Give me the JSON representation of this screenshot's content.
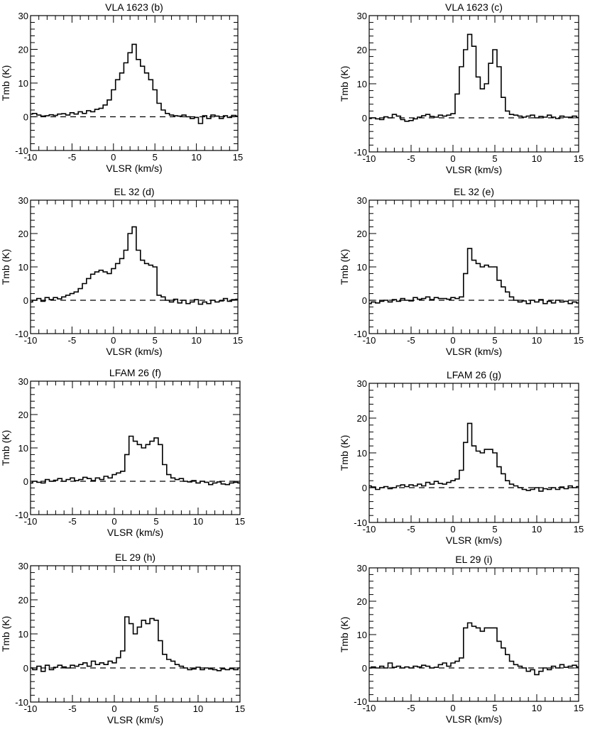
{
  "chart_data": [
    {
      "type": "line",
      "title": "VLA 1623 (b)",
      "xlabel": "VLSR (km/s)",
      "ylabel": "Tmb (K)",
      "xlim": [
        -10,
        15
      ],
      "ylim": [
        -10,
        30
      ],
      "xticks": [
        "-10",
        "-5",
        "0",
        "5",
        "10",
        "15"
      ],
      "yticks": [
        "-10",
        "0",
        "10",
        "20",
        "30"
      ],
      "baseline": 0,
      "series": [
        {
          "x": [
            -10,
            -9.5,
            -9,
            -8.5,
            -8,
            -7.5,
            -7,
            -6.5,
            -6,
            -5.5,
            -5,
            -4.5,
            -4,
            -3.5,
            -3,
            -2.5,
            -2,
            -1.5,
            -1,
            -0.5,
            0,
            0.5,
            1,
            1.5,
            2,
            2.5,
            3,
            3.5,
            4,
            4.5,
            5,
            5.5,
            6,
            6.5,
            7,
            7.5,
            8,
            8.5,
            9,
            9.5,
            10,
            10.5,
            11,
            11.5,
            12,
            12.5,
            13,
            13.5,
            14,
            14.5,
            15
          ],
          "y": [
            0.8,
            1.0,
            0.5,
            0.2,
            0.3,
            0.6,
            0.4,
            0.8,
            0.9,
            0.5,
            1.2,
            0.8,
            1.5,
            1.0,
            1.8,
            1.5,
            2.2,
            2.5,
            3.5,
            5.0,
            8.0,
            11.0,
            13.0,
            16.0,
            19.0,
            21.5,
            17.0,
            15.0,
            13.0,
            11.0,
            8.0,
            4.0,
            2.0,
            1.0,
            0.5,
            0.3,
            0.2,
            0.5,
            0.0,
            -0.5,
            -0.2,
            -2.0,
            0.3,
            -0.5,
            0.5,
            0.2,
            -0.5,
            0.3,
            -0.2,
            0.4,
            0.2
          ]
        }
      ]
    },
    {
      "type": "line",
      "title": "VLA 1623 (c)",
      "xlabel": "VLSR (km/s)",
      "ylabel": "Tmb (K)",
      "xlim": [
        -10,
        15
      ],
      "ylim": [
        -10,
        30
      ],
      "xticks": [
        "-10",
        "-5",
        "0",
        "5",
        "10",
        "15"
      ],
      "yticks": [
        "-10",
        "0",
        "10",
        "20",
        "30"
      ],
      "baseline": 0,
      "series": [
        {
          "x": [
            -10,
            -9.5,
            -9,
            -8.5,
            -8,
            -7.5,
            -7,
            -6.5,
            -6,
            -5.5,
            -5,
            -4.5,
            -4,
            -3.5,
            -3,
            -2.5,
            -2,
            -1.5,
            -1,
            -0.5,
            0,
            0.5,
            1,
            1.5,
            2,
            2.5,
            3,
            3.5,
            4,
            4.5,
            5,
            5.5,
            6,
            6.5,
            7,
            7.5,
            8,
            8.5,
            9,
            9.5,
            10,
            10.5,
            11,
            11.5,
            12,
            12.5,
            13,
            13.5,
            14,
            14.5,
            15
          ],
          "y": [
            -0.2,
            0.0,
            -0.3,
            -0.5,
            0.3,
            0.0,
            1.0,
            0.5,
            -0.5,
            -1.0,
            -0.8,
            -0.3,
            0.2,
            0.6,
            1.0,
            0.4,
            0.2,
            0.8,
            0.5,
            0.8,
            1.2,
            7.0,
            15.0,
            20.0,
            24.5,
            21.0,
            12.0,
            8.5,
            10.0,
            16.0,
            20.0,
            15.0,
            6.0,
            2.0,
            1.0,
            0.8,
            0.5,
            0.2,
            0.5,
            0.8,
            0.0,
            0.4,
            0.2,
            0.8,
            0.2,
            -0.2,
            0.5,
            0.2,
            0.2,
            0.5,
            0.1
          ]
        }
      ]
    },
    {
      "type": "line",
      "title": "EL 32 (d)",
      "xlabel": "VLSR (km/s)",
      "ylabel": "Tmb (K)",
      "xlim": [
        -10,
        15
      ],
      "ylim": [
        -10,
        30
      ],
      "xticks": [
        "-10",
        "-5",
        "0",
        "5",
        "10",
        "15"
      ],
      "yticks": [
        "-10",
        "0",
        "10",
        "20",
        "30"
      ],
      "baseline": 0,
      "series": [
        {
          "x": [
            -10,
            -9.5,
            -9,
            -8.5,
            -8,
            -7.5,
            -7,
            -6.5,
            -6,
            -5.5,
            -5,
            -4.5,
            -4,
            -3.5,
            -3,
            -2.5,
            -2,
            -1.5,
            -1,
            -0.5,
            0,
            0.5,
            1,
            1.5,
            2,
            2.5,
            3,
            3.5,
            4,
            4.5,
            5,
            5.5,
            6,
            6.5,
            7,
            7.5,
            8,
            8.5,
            9,
            9.5,
            10,
            10.5,
            11,
            11.5,
            12,
            12.5,
            13,
            13.5,
            14,
            14.5,
            15
          ],
          "y": [
            -0.5,
            0.0,
            0.5,
            -0.3,
            0.8,
            0.2,
            0.8,
            0.4,
            1.0,
            1.5,
            2.0,
            2.5,
            3.5,
            5.0,
            6.5,
            7.8,
            8.5,
            9.0,
            8.5,
            8.0,
            9.5,
            11.0,
            12.5,
            15.0,
            20.0,
            22.0,
            15.0,
            12.0,
            11.0,
            10.5,
            10.0,
            1.5,
            1.0,
            0.0,
            -0.5,
            0.3,
            -0.8,
            0.0,
            -1.0,
            -0.5,
            0.2,
            -1.2,
            -0.5,
            -1.0,
            0.0,
            -0.5,
            -0.2,
            0.5,
            -0.3,
            0.2,
            0.3
          ]
        }
      ]
    },
    {
      "type": "line",
      "title": "EL 32 (e)",
      "xlabel": "VLSR (km/s)",
      "ylabel": "Tmb (K)",
      "xlim": [
        -10,
        15
      ],
      "ylim": [
        -10,
        30
      ],
      "xticks": [
        "-10",
        "-5",
        "0",
        "5",
        "10",
        "15"
      ],
      "yticks": [
        "-10",
        "0",
        "10",
        "20",
        "30"
      ],
      "baseline": 0,
      "series": [
        {
          "x": [
            -10,
            -9.5,
            -9,
            -8.5,
            -8,
            -7.5,
            -7,
            -6.5,
            -6,
            -5.5,
            -5,
            -4.5,
            -4,
            -3.5,
            -3,
            -2.5,
            -2,
            -1.5,
            -1,
            -0.5,
            0,
            0.5,
            1,
            1.5,
            2,
            2.5,
            3,
            3.5,
            4,
            4.5,
            5,
            5.5,
            6,
            6.5,
            7,
            7.5,
            8,
            8.5,
            9,
            9.5,
            10,
            10.5,
            11,
            11.5,
            12,
            12.5,
            13,
            13.5,
            14,
            14.5,
            15
          ],
          "y": [
            -1.0,
            -0.5,
            -0.8,
            -0.3,
            0.0,
            -0.5,
            0.2,
            -0.3,
            0.5,
            0.0,
            -0.2,
            0.8,
            0.3,
            0.5,
            1.0,
            0.2,
            0.8,
            0.5,
            0.5,
            0.3,
            0.8,
            0.5,
            1.0,
            8.0,
            15.5,
            12.0,
            11.0,
            10.0,
            10.5,
            10.0,
            10.0,
            6.0,
            4.0,
            2.5,
            1.0,
            0.0,
            -0.5,
            -0.2,
            -1.0,
            0.0,
            -0.5,
            0.2,
            -1.0,
            -0.3,
            -0.8,
            0.0,
            -0.5,
            -0.3,
            -1.0,
            -0.5,
            -0.8
          ]
        }
      ]
    },
    {
      "type": "line",
      "title": "LFAM 26 (f)",
      "xlabel": "VLSR (km/s)",
      "ylabel": "Tmb (K)",
      "xlim": [
        -10,
        15
      ],
      "ylim": [
        -10,
        30
      ],
      "xticks": [
        "-10",
        "-5",
        "0",
        "5",
        "10",
        "15"
      ],
      "yticks": [
        "-10",
        "0",
        "10",
        "20",
        "30"
      ],
      "baseline": 0,
      "series": [
        {
          "x": [
            -10,
            -9.5,
            -9,
            -8.5,
            -8,
            -7.5,
            -7,
            -6.5,
            -6,
            -5.5,
            -5,
            -4.5,
            -4,
            -3.5,
            -3,
            -2.5,
            -2,
            -1.5,
            -1,
            -0.5,
            0,
            0.5,
            1,
            1.5,
            2,
            2.5,
            3,
            3.5,
            4,
            4.5,
            5,
            5.5,
            6,
            6.5,
            7,
            7.5,
            8,
            8.5,
            9,
            9.5,
            10,
            10.5,
            11,
            11.5,
            12,
            12.5,
            13,
            13.5,
            14,
            14.5,
            15
          ],
          "y": [
            -0.5,
            0.0,
            -0.3,
            -0.5,
            0.5,
            0.0,
            0.3,
            0.8,
            0.0,
            0.5,
            1.0,
            0.2,
            0.5,
            1.2,
            0.8,
            0.2,
            1.0,
            0.5,
            1.5,
            1.0,
            2.0,
            2.5,
            3.0,
            8.0,
            13.5,
            12.0,
            11.0,
            10.0,
            11.0,
            12.0,
            13.0,
            11.0,
            5.0,
            2.0,
            1.0,
            0.5,
            0.8,
            0.0,
            -0.2,
            0.2,
            -0.5,
            0.0,
            -0.3,
            -1.0,
            -0.5,
            -0.2,
            -0.8,
            -1.0,
            -0.5,
            -0.3,
            -0.5
          ]
        }
      ]
    },
    {
      "type": "line",
      "title": "LFAM 26 (g)",
      "xlabel": "VLSR (km/s)",
      "ylabel": "Tmb (K)",
      "xlim": [
        -10,
        15
      ],
      "ylim": [
        -10,
        30
      ],
      "xticks": [
        "-10",
        "-5",
        "0",
        "5",
        "10",
        "15"
      ],
      "yticks": [
        "-10",
        "0",
        "10",
        "20",
        "30"
      ],
      "baseline": 0,
      "series": [
        {
          "x": [
            -10,
            -9.5,
            -9,
            -8.5,
            -8,
            -7.5,
            -7,
            -6.5,
            -6,
            -5.5,
            -5,
            -4.5,
            -4,
            -3.5,
            -3,
            -2.5,
            -2,
            -1.5,
            -1,
            -0.5,
            0,
            0.5,
            1,
            1.5,
            2,
            2.5,
            3,
            3.5,
            4,
            4.5,
            5,
            5.5,
            6,
            6.5,
            7,
            7.5,
            8,
            8.5,
            9,
            9.5,
            10,
            10.5,
            11,
            11.5,
            12,
            12.5,
            13,
            13.5,
            14,
            14.5,
            15
          ],
          "y": [
            0.5,
            0.2,
            -0.5,
            0.0,
            0.3,
            -0.3,
            0.0,
            0.5,
            0.8,
            0.3,
            0.8,
            0.5,
            1.0,
            0.5,
            1.5,
            1.0,
            1.8,
            1.2,
            1.0,
            1.5,
            2.0,
            2.5,
            5.0,
            13.0,
            18.5,
            12.0,
            10.5,
            10.0,
            11.0,
            11.0,
            10.0,
            6.0,
            4.0,
            2.0,
            1.0,
            0.5,
            0.0,
            -0.5,
            -0.8,
            -0.5,
            0.0,
            -1.0,
            -0.3,
            -0.5,
            0.0,
            -0.5,
            0.2,
            -0.3,
            0.5,
            0.0,
            0.3
          ]
        }
      ]
    },
    {
      "type": "line",
      "title": "EL 29 (h)",
      "xlabel": "VLSR (km/s)",
      "ylabel": "Tmb (K)",
      "xlim": [
        -10,
        15
      ],
      "ylim": [
        -10,
        30
      ],
      "xticks": [
        "-10",
        "-5",
        "0",
        "5",
        "10",
        "15"
      ],
      "yticks": [
        "-10",
        "0",
        "10",
        "20",
        "30"
      ],
      "baseline": 0,
      "series": [
        {
          "x": [
            -10,
            -9.5,
            -9,
            -8.5,
            -8,
            -7.5,
            -7,
            -6.5,
            -6,
            -5.5,
            -5,
            -4.5,
            -4,
            -3.5,
            -3,
            -2.5,
            -2,
            -1.5,
            -1,
            -0.5,
            0,
            0.5,
            1,
            1.5,
            2,
            2.5,
            3,
            3.5,
            4,
            4.5,
            5,
            5.5,
            6,
            6.5,
            7,
            7.5,
            8,
            8.5,
            9,
            9.5,
            10,
            10.5,
            11,
            11.5,
            12,
            12.5,
            13,
            13.5,
            14,
            14.5,
            15
          ],
          "y": [
            0.0,
            -0.5,
            0.5,
            -1.0,
            0.8,
            -0.5,
            0.2,
            0.8,
            0.3,
            0.0,
            0.8,
            0.5,
            1.0,
            1.5,
            0.5,
            2.0,
            1.0,
            1.5,
            1.0,
            2.0,
            1.5,
            3.0,
            5.0,
            15.0,
            13.0,
            10.0,
            12.0,
            14.0,
            13.0,
            14.5,
            14.0,
            8.0,
            4.0,
            2.5,
            2.0,
            1.0,
            0.5,
            0.0,
            -0.5,
            -0.3,
            0.2,
            -0.5,
            0.0,
            -0.3,
            -0.5,
            -0.8,
            -0.3,
            -0.5,
            -0.2,
            -0.5,
            0.0
          ]
        }
      ]
    },
    {
      "type": "line",
      "title": "EL 29 (i)",
      "xlabel": "VLSR (km/s)",
      "ylabel": "Tmb (K)",
      "xlim": [
        -10,
        15
      ],
      "ylim": [
        -10,
        30
      ],
      "xticks": [
        "-10",
        "-5",
        "0",
        "5",
        "10",
        "15"
      ],
      "yticks": [
        "-10",
        "0",
        "10",
        "20",
        "30"
      ],
      "baseline": 0,
      "series": [
        {
          "x": [
            -10,
            -9.5,
            -9,
            -8.5,
            -8,
            -7.5,
            -7,
            -6.5,
            -6,
            -5.5,
            -5,
            -4.5,
            -4,
            -3.5,
            -3,
            -2.5,
            -2,
            -1.5,
            -1,
            -0.5,
            0,
            0.5,
            1,
            1.5,
            2,
            2.5,
            3,
            3.5,
            4,
            4.5,
            5,
            5.5,
            6,
            6.5,
            7,
            7.5,
            8,
            8.5,
            9,
            9.5,
            10,
            10.5,
            11,
            11.5,
            12,
            12.5,
            13,
            13.5,
            14,
            14.5,
            15
          ],
          "y": [
            0.0,
            0.3,
            0.0,
            0.5,
            0.0,
            1.5,
            0.2,
            0.5,
            0.0,
            0.3,
            0.0,
            0.5,
            0.3,
            0.8,
            0.5,
            0.0,
            0.2,
            1.0,
            1.5,
            0.5,
            1.5,
            2.0,
            3.0,
            12.0,
            13.5,
            12.5,
            12.0,
            11.0,
            12.0,
            12.0,
            12.0,
            8.0,
            6.0,
            4.0,
            2.0,
            1.0,
            0.5,
            0.0,
            -1.0,
            -0.5,
            -2.0,
            -1.0,
            0.0,
            -0.5,
            0.5,
            0.0,
            1.0,
            0.2,
            0.5,
            0.8,
            0.3
          ]
        }
      ]
    }
  ]
}
